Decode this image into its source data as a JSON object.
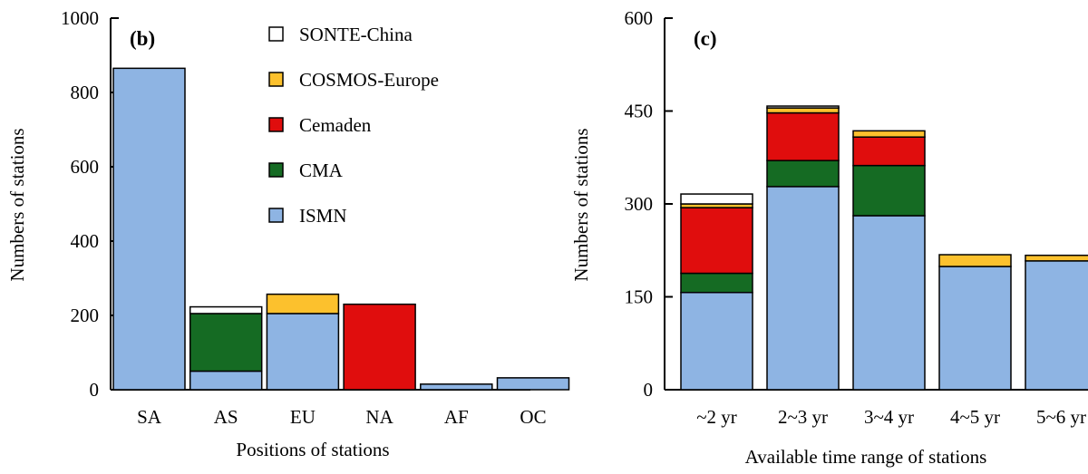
{
  "colors": {
    "ISMN": "#8eb4e3",
    "CMA": "#156b23",
    "Cemaden": "#e00d0d",
    "COSMOS-Europe": "#fcc12d",
    "SONTE-China": "#ffffff"
  },
  "chart_data": [
    {
      "type": "bar",
      "stacked": true,
      "panel_label": "(b)",
      "xlabel": "Positions of stations",
      "ylabel": "Numbers of stations",
      "ylim": [
        0,
        1000
      ],
      "yticks": [
        "0",
        "200",
        "400",
        "600",
        "800",
        "1000"
      ],
      "categories": [
        "SA",
        "AS",
        "EU",
        "NA",
        "AF",
        "OC"
      ],
      "legend_position": "top-right",
      "series": [
        {
          "name": "ISMN",
          "values": [
            865,
            50,
            205,
            0,
            15,
            32
          ]
        },
        {
          "name": "CMA",
          "values": [
            0,
            155,
            0,
            0,
            0,
            0
          ]
        },
        {
          "name": "Cemaden",
          "values": [
            0,
            0,
            0,
            230,
            0,
            0
          ]
        },
        {
          "name": "COSMOS-Europe",
          "values": [
            0,
            0,
            52,
            0,
            0,
            0
          ]
        },
        {
          "name": "SONTE-China",
          "values": [
            0,
            18,
            0,
            0,
            0,
            0
          ]
        }
      ]
    },
    {
      "type": "bar",
      "stacked": true,
      "panel_label": "(c)",
      "xlabel": "Available time range of stations",
      "ylabel": "Numbers of stations",
      "ylim": [
        0,
        600
      ],
      "yticks": [
        "0",
        "150",
        "300",
        "450",
        "600"
      ],
      "categories": [
        "~2 yr",
        "2~3 yr",
        "3~4 yr",
        "4~5 yr",
        "5~6 yr"
      ],
      "series": [
        {
          "name": "ISMN",
          "values": [
            157,
            328,
            281,
            199,
            208
          ]
        },
        {
          "name": "CMA",
          "values": [
            31,
            42,
            81,
            0,
            0
          ]
        },
        {
          "name": "Cemaden",
          "values": [
            106,
            77,
            46,
            0,
            0
          ]
        },
        {
          "name": "COSMOS-Europe",
          "values": [
            6,
            8,
            10,
            19,
            9
          ]
        },
        {
          "name": "SONTE-China",
          "values": [
            16,
            3,
            0,
            0,
            0
          ]
        }
      ]
    }
  ]
}
